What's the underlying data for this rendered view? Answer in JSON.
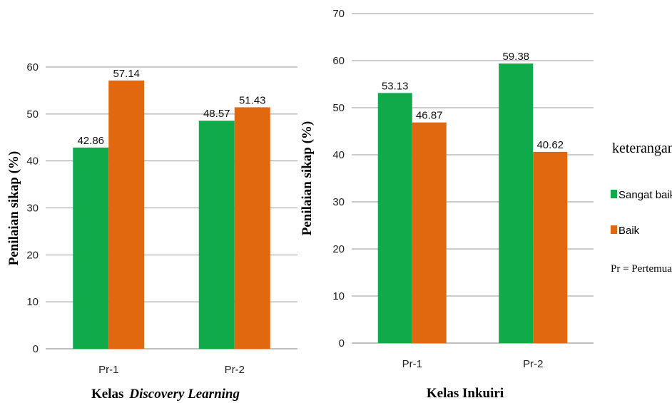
{
  "colors": {
    "sangat_baik": "#10aa4a",
    "baik": "#e2680f",
    "grid": "#9a9a9a",
    "axis": "#7f7f7f"
  },
  "legend": {
    "title": "keterangan",
    "items": [
      {
        "label": "Sangat baik",
        "color": "#10aa4a"
      },
      {
        "label": "Baik",
        "color": "#e2680f"
      }
    ],
    "note": "Pr = Pertemuan"
  },
  "chart_data": [
    {
      "type": "bar",
      "title": "",
      "xlabel_prefix": "Kelas",
      "xlabel_emphasis": "Discovery Learning",
      "ylabel": "Penilaian sikap (%)",
      "categories": [
        "Pr-1",
        "Pr-2"
      ],
      "ylim": [
        0,
        60
      ],
      "yticks": [
        0,
        10,
        20,
        30,
        40,
        50,
        60
      ],
      "grid": true,
      "series": [
        {
          "name": "Sangat baik",
          "values": [
            42.86,
            48.57
          ],
          "labels": [
            "42.86",
            "48.57"
          ]
        },
        {
          "name": "Baik",
          "values": [
            57.14,
            51.43
          ],
          "labels": [
            "57.14",
            "51.43"
          ]
        }
      ]
    },
    {
      "type": "bar",
      "title": "",
      "xlabel": "Kelas Inkuiri",
      "ylabel": "Penilaian sikap (%)",
      "categories": [
        "Pr-1",
        "Pr-2"
      ],
      "ylim": [
        0,
        70
      ],
      "yticks": [
        0,
        10,
        20,
        30,
        40,
        50,
        60,
        70
      ],
      "grid": true,
      "legend_position": "right",
      "series": [
        {
          "name": "Sangat baik",
          "values": [
            53.13,
            59.38
          ],
          "labels": [
            "53.13",
            "59.38"
          ]
        },
        {
          "name": "Baik",
          "values": [
            46.87,
            40.62
          ],
          "labels": [
            "46.87",
            "40.62"
          ]
        }
      ]
    }
  ]
}
